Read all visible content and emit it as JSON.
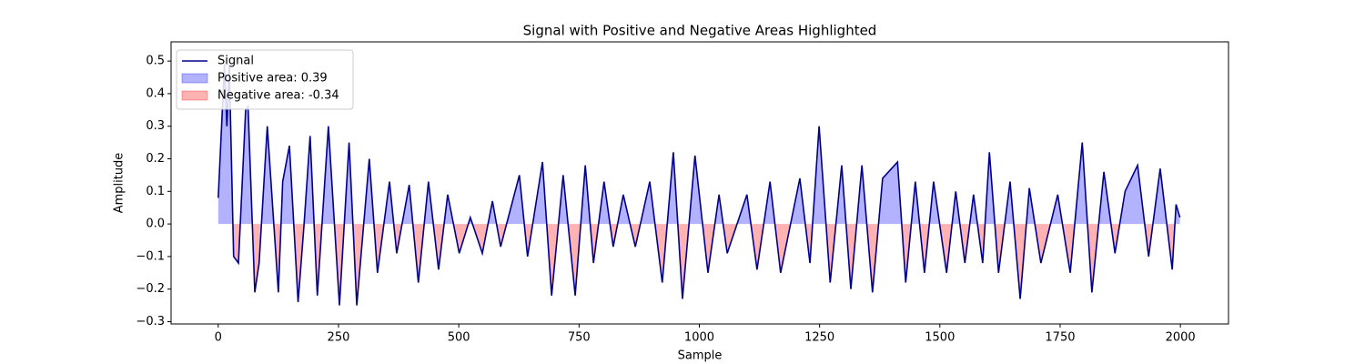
{
  "chart_data": {
    "type": "line",
    "title": "Signal with Positive and Negative Areas Highlighted",
    "x_label": "Sample",
    "y_label": "Amplitude",
    "x": [
      0,
      13,
      18,
      23,
      32,
      42,
      57,
      62,
      76,
      85,
      102,
      125,
      134,
      148,
      166,
      178,
      191,
      206,
      229,
      252,
      272,
      288,
      314,
      331,
      356,
      371,
      397,
      416,
      437,
      458,
      477,
      501,
      524,
      549,
      570,
      587,
      626,
      643,
      674,
      693,
      717,
      742,
      763,
      780,
      802,
      821,
      842,
      867,
      897,
      923,
      946,
      965,
      991,
      1018,
      1041,
      1058,
      1099,
      1120,
      1147,
      1169,
      1209,
      1230,
      1249,
      1272,
      1296,
      1315,
      1338,
      1360,
      1381,
      1412,
      1429,
      1449,
      1468,
      1487,
      1514,
      1533,
      1552,
      1570,
      1589,
      1603,
      1622,
      1646,
      1667,
      1686,
      1710,
      1745,
      1771,
      1796,
      1816,
      1841,
      1864,
      1885,
      1911,
      1934,
      1958,
      1983,
      1991,
      1999
    ],
    "series": [
      {
        "name": "Signal",
        "color": "#00008b",
        "values": [
          0.08,
          0.49,
          0.3,
          0.49,
          -0.1,
          -0.12,
          0.35,
          0.36,
          -0.21,
          -0.12,
          0.3,
          -0.21,
          0.13,
          0.24,
          -0.24,
          -0.01,
          0.27,
          -0.22,
          0.3,
          -0.25,
          0.25,
          -0.25,
          0.2,
          -0.15,
          0.13,
          -0.09,
          0.12,
          -0.18,
          0.13,
          -0.14,
          0.09,
          -0.09,
          0.02,
          -0.09,
          0.07,
          -0.07,
          0.15,
          -0.1,
          0.19,
          -0.22,
          0.15,
          -0.22,
          0.18,
          -0.12,
          0.13,
          -0.07,
          0.09,
          -0.07,
          0.13,
          -0.18,
          0.22,
          -0.23,
          0.21,
          -0.15,
          0.09,
          -0.09,
          0.09,
          -0.14,
          0.13,
          -0.15,
          0.14,
          -0.12,
          0.3,
          -0.18,
          0.18,
          -0.2,
          0.18,
          -0.21,
          0.14,
          0.19,
          -0.18,
          0.13,
          -0.15,
          0.13,
          -0.15,
          0.1,
          -0.12,
          0.09,
          -0.12,
          0.22,
          -0.15,
          0.13,
          -0.23,
          0.11,
          -0.12,
          0.09,
          -0.15,
          0.25,
          -0.21,
          0.16,
          -0.09,
          0.1,
          0.18,
          -0.1,
          0.17,
          -0.14,
          0.06,
          0.02
        ]
      }
    ],
    "fills": [
      {
        "name": "Positive area: 0.39",
        "color": "#0000ff",
        "side": "positive"
      },
      {
        "name": "Negative area: -0.34",
        "color": "#ff0000",
        "side": "negative"
      }
    ],
    "xlim": [
      -98,
      2100
    ],
    "ylim": [
      -0.307,
      0.559
    ],
    "xticks": [
      0,
      250,
      500,
      750,
      1000,
      1250,
      1500,
      1750,
      2000
    ],
    "yticks": [
      {
        "value": -0.3,
        "label": "−0.3"
      },
      {
        "value": -0.2,
        "label": "−0.2"
      },
      {
        "value": -0.1,
        "label": "−0.1"
      },
      {
        "value": 0,
        "label": "0.0"
      },
      0.1,
      0.2,
      0.3,
      0.4,
      0.5
    ],
    "legend": "upper left"
  }
}
